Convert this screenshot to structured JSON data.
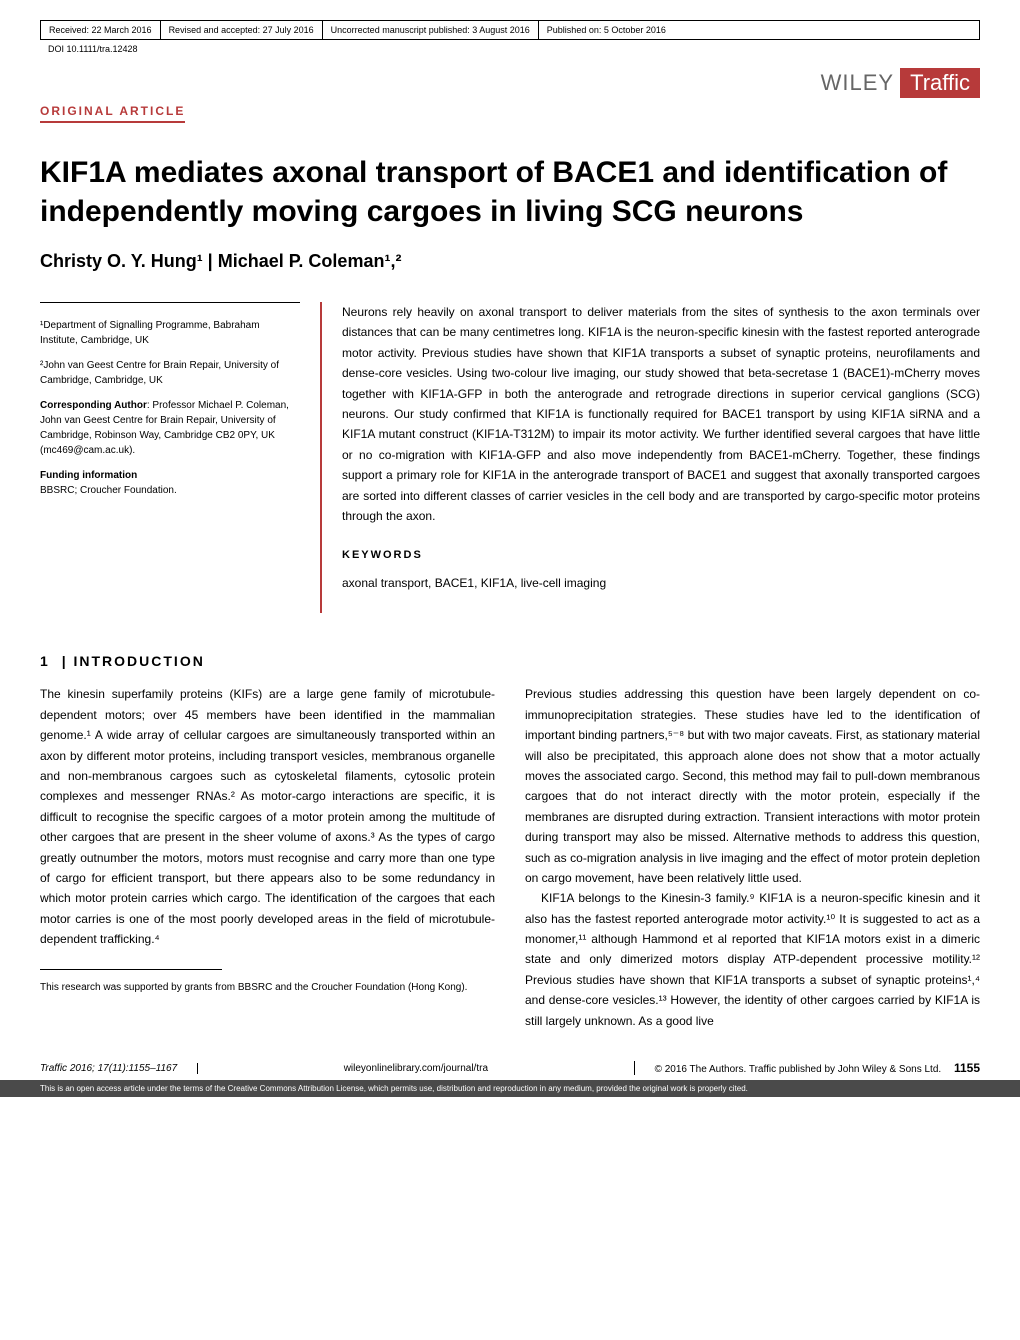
{
  "header": {
    "received": "Received: 22 March 2016",
    "revised": "Revised and accepted: 27 July 2016",
    "uncorrected": "Uncorrected manuscript published: 3 August 2016",
    "published": "Published on: 5 October 2016",
    "doi": "DOI 10.1111/tra.12428"
  },
  "journal": {
    "publisher": "WILEY",
    "name": "Traffic"
  },
  "article_type": "ORIGINAL ARTICLE",
  "title": "KIF1A mediates axonal transport of BACE1 and identification of independently moving cargoes in living SCG neurons",
  "authors_line": "Christy O. Y. Hung¹ | Michael P. Coleman¹,²",
  "affiliations": {
    "aff1": "¹Department of Signalling Programme, Babraham Institute, Cambridge, UK",
    "aff2": "²John van Geest Centre for Brain Repair, University of Cambridge, Cambridge, UK",
    "corresponding_label": "Corresponding Author",
    "corresponding_text": ": Professor Michael P. Coleman, John van Geest Centre for Brain Repair, University of Cambridge, Robinson Way, Cambridge CB2 0PY, UK (mc469@cam.ac.uk).",
    "funding_label": "Funding information",
    "funding_text": "BBSRC; Croucher Foundation."
  },
  "abstract": "Neurons rely heavily on axonal transport to deliver materials from the sites of synthesis to the axon terminals over distances that can be many centimetres long. KIF1A is the neuron-specific kinesin with the fastest reported anterograde motor activity. Previous studies have shown that KIF1A transports a subset of synaptic proteins, neurofilaments and dense-core vesicles. Using two-colour live imaging, our study showed that beta-secretase 1 (BACE1)-mCherry moves together with KIF1A-GFP in both the anterograde and retrograde directions in superior cervical ganglions (SCG) neurons. Our study confirmed that KIF1A is functionally required for BACE1 transport by using KIF1A siRNA and a KIF1A mutant construct (KIF1A-T312M) to impair its motor activity. We further identified several cargoes that have little or no co-migration with KIF1A-GFP and also move independently from BACE1-mCherry. Together, these findings support a primary role for KIF1A in the anterograde transport of BACE1 and suggest that axonally transported cargoes are sorted into different classes of carrier vesicles in the cell body and are transported by cargo-specific motor proteins through the axon.",
  "keywords_label": "KEYWORDS",
  "keywords": "axonal transport, BACE1, KIF1A, live-cell imaging",
  "section1": {
    "num": "1",
    "sep": "|",
    "title": "INTRODUCTION"
  },
  "body": {
    "col1_p1": "The kinesin superfamily proteins (KIFs) are a large gene family of microtubule-dependent motors; over 45 members have been identified in the mammalian genome.¹ A wide array of cellular cargoes are simultaneously transported within an axon by different motor proteins, including transport vesicles, membranous organelle and non-membranous cargoes such as cytoskeletal filaments, cytosolic protein complexes and messenger RNAs.² As motor-cargo interactions are specific, it is difficult to recognise the specific cargoes of a motor protein among the multitude of other cargoes that are present in the sheer volume of axons.³ As the types of cargo greatly outnumber the motors, motors must recognise and carry more than one type of cargo for efficient transport, but there appears also to be some redundancy in which motor protein carries which cargo. The identification of the cargoes that each motor carries is one of the most poorly developed areas in the field of microtubule-dependent trafficking.⁴",
    "col2_p1": "Previous studies addressing this question have been largely dependent on co-immunoprecipitation strategies. These studies have led to the identification of important binding partners,⁵⁻⁸ but with two major caveats. First, as stationary material will also be precipitated, this approach alone does not show that a motor actually moves the associated cargo. Second, this method may fail to pull-down membranous cargoes that do not interact directly with the motor protein, especially if the membranes are disrupted during extraction. Transient interactions with motor protein during transport may also be missed. Alternative methods to address this question, such as co-migration analysis in live imaging and the effect of motor protein depletion on cargo movement, have been relatively little used.",
    "col2_p2": "KIF1A belongs to the Kinesin-3 family.⁹ KIF1A is a neuron-specific kinesin and it also has the fastest reported anterograde motor activity.¹⁰ It is suggested to act as a monomer,¹¹ although Hammond et al reported that KIF1A motors exist in a dimeric state and only dimerized motors display ATP-dependent processive motility.¹² Previous studies have shown that KIF1A transports a subset of synaptic proteins¹,⁴ and dense-core vesicles.¹³ However, the identity of other cargoes carried by KIF1A is still largely unknown. As a good live"
  },
  "footnote": "This research was supported by grants from BBSRC and the Croucher Foundation (Hong Kong).",
  "footer": {
    "left": "Traffic 2016; 17(11):1155–1167",
    "center": "wileyonlinelibrary.com/journal/tra",
    "right": "© 2016 The Authors. Traffic published by John Wiley & Sons Ltd.",
    "page": "1155"
  },
  "license": "This is an open access article under the terms of the Creative Commons Attribution License, which permits use, distribution and reproduction in any medium, provided the original work is properly cited.",
  "colors": {
    "accent": "#b73a3a",
    "footer_bg": "#4a4a4a",
    "publisher_grey": "#666666"
  }
}
